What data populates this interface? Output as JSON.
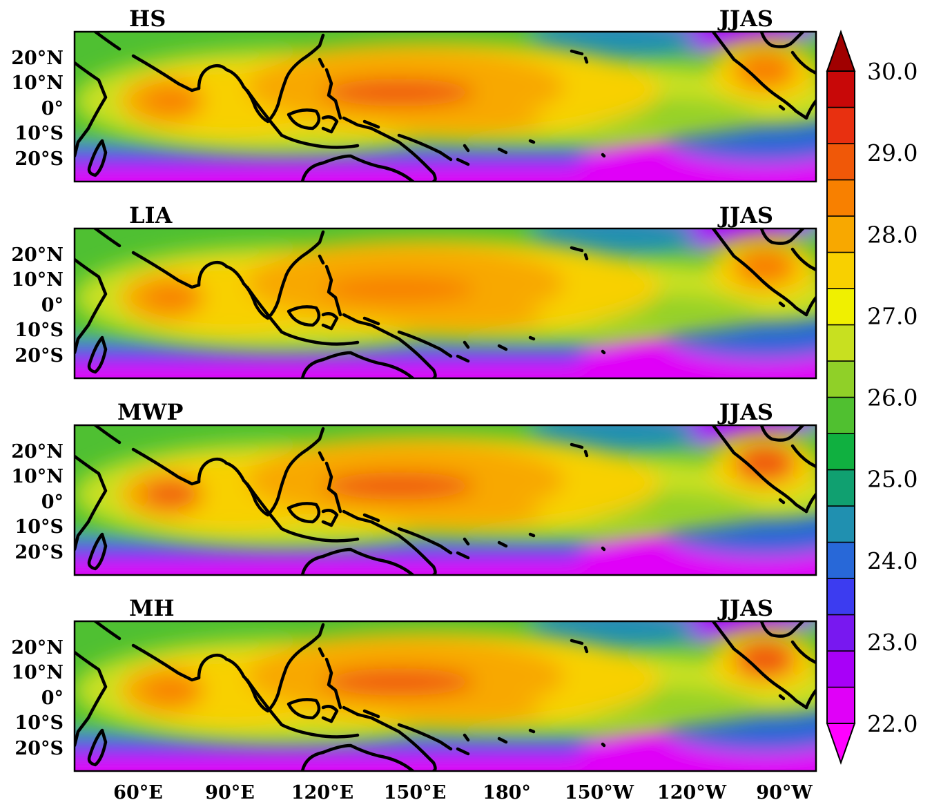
{
  "figure": {
    "season_label": "JJAS",
    "panels": [
      {
        "id": "hs",
        "title": "HS",
        "season": "JJAS",
        "max_core": 29.6
      },
      {
        "id": "lia",
        "title": "LIA",
        "season": "JJAS",
        "max_core": 29.4
      },
      {
        "id": "mwp",
        "title": "MWP",
        "season": "JJAS",
        "max_core": 29.8
      },
      {
        "id": "mh",
        "title": "MH",
        "season": "JJAS",
        "max_core": 29.7
      }
    ],
    "lat_labels": [
      "20°N",
      "10°N",
      "0°",
      "10°S",
      "20°S"
    ],
    "lon_labels": [
      "60°E",
      "90°E",
      "120°E",
      "150°E",
      "180°",
      "150°W",
      "120°W",
      "90°W"
    ],
    "colorbar": {
      "min": 22.0,
      "max": 30.0,
      "step": 0.5,
      "labels": [
        "30.0",
        "29.0",
        "28.0",
        "27.0",
        "26.0",
        "25.0",
        "24.0",
        "23.0",
        "22.0"
      ],
      "colors": [
        "#e000f8",
        "#a800f8",
        "#7818f0",
        "#3c3cf0",
        "#2868d8",
        "#2090b0",
        "#10a070",
        "#10b040",
        "#50c030",
        "#90d028",
        "#c8e020",
        "#f0f000",
        "#f8d000",
        "#f8a800",
        "#f88000",
        "#f05808",
        "#e83010",
        "#c80808"
      ],
      "under_color": "#ff00ff",
      "over_color": "#a00000"
    }
  }
}
